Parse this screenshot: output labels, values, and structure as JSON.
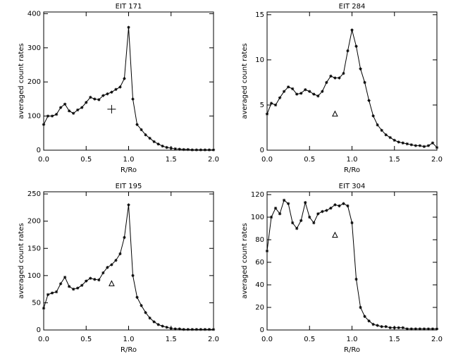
{
  "chart_data": [
    {
      "type": "line",
      "title": "EIT 171",
      "x_label": "R/Ro",
      "y_label": "averaged count rates",
      "color": "#000000",
      "x": [
        0,
        0.05,
        0.1,
        0.15,
        0.2,
        0.25,
        0.3,
        0.35,
        0.4,
        0.45,
        0.5,
        0.55,
        0.6,
        0.65,
        0.7,
        0.75,
        0.8,
        0.85,
        0.9,
        0.95,
        1.0,
        1.05,
        1.1,
        1.15,
        1.2,
        1.25,
        1.3,
        1.35,
        1.4,
        1.45,
        1.5,
        1.55,
        1.6,
        1.65,
        1.7,
        1.75,
        1.8,
        1.85,
        1.9,
        1.95,
        2.0
      ],
      "values": [
        75,
        100,
        100,
        105,
        125,
        135,
        115,
        108,
        118,
        125,
        140,
        155,
        150,
        148,
        160,
        165,
        170,
        178,
        185,
        210,
        360,
        150,
        75,
        60,
        45,
        35,
        25,
        18,
        12,
        8,
        6,
        4,
        3,
        2,
        2,
        1,
        1,
        1,
        1,
        1,
        1
      ],
      "annotation_point": {
        "x": 0.8,
        "y": 120,
        "symbol": "plus"
      },
      "xlim": [
        0,
        2
      ],
      "ylim": [
        0,
        405
      ],
      "xticks": [
        {
          "value": 0,
          "label": "0.0"
        },
        {
          "value": 0.5,
          "label": "0.5"
        },
        {
          "value": 1,
          "label": "1.0"
        },
        {
          "value": 1.5,
          "label": "1.5"
        },
        {
          "value": 2,
          "label": "2.0"
        }
      ],
      "yticks": [
        0,
        100,
        200,
        300,
        400
      ]
    },
    {
      "type": "line",
      "title": "EIT 284",
      "x_label": "R/Ro",
      "y_label": "averaged count rates",
      "color": "#000000",
      "x": [
        0,
        0.05,
        0.1,
        0.15,
        0.2,
        0.25,
        0.3,
        0.35,
        0.4,
        0.45,
        0.5,
        0.55,
        0.6,
        0.65,
        0.7,
        0.75,
        0.8,
        0.85,
        0.9,
        0.95,
        1.0,
        1.05,
        1.1,
        1.15,
        1.2,
        1.25,
        1.3,
        1.35,
        1.4,
        1.45,
        1.5,
        1.55,
        1.6,
        1.65,
        1.7,
        1.75,
        1.8,
        1.85,
        1.9,
        1.95,
        2.0
      ],
      "values": [
        4,
        5.2,
        5,
        5.8,
        6.5,
        7,
        6.8,
        6.2,
        6.3,
        6.7,
        6.5,
        6.2,
        6,
        6.5,
        7.5,
        8.2,
        8,
        8,
        8.5,
        11,
        13.3,
        11.5,
        9,
        7.5,
        5.5,
        3.8,
        2.8,
        2.2,
        1.7,
        1.4,
        1.1,
        0.9,
        0.8,
        0.7,
        0.6,
        0.5,
        0.5,
        0.4,
        0.5,
        0.8,
        0.3
      ],
      "annotation_point": {
        "x": 0.8,
        "y": 4,
        "symbol": "triangle"
      },
      "xlim": [
        0,
        2
      ],
      "ylim": [
        0,
        15.3
      ],
      "xticks": [
        {
          "value": 0,
          "label": "0.0"
        },
        {
          "value": 0.5,
          "label": "0.5"
        },
        {
          "value": 1,
          "label": "1.0"
        },
        {
          "value": 1.5,
          "label": "1.5"
        },
        {
          "value": 2,
          "label": "2.0"
        }
      ],
      "yticks": [
        0,
        5,
        10,
        15
      ]
    },
    {
      "type": "line",
      "title": "EIT 195",
      "x_label": "R/Ro",
      "y_label": "averaged count rates",
      "color": "#000000",
      "x": [
        0,
        0.05,
        0.1,
        0.15,
        0.2,
        0.25,
        0.3,
        0.35,
        0.4,
        0.45,
        0.5,
        0.55,
        0.6,
        0.65,
        0.7,
        0.75,
        0.8,
        0.85,
        0.9,
        0.95,
        1.0,
        1.05,
        1.1,
        1.15,
        1.2,
        1.25,
        1.3,
        1.35,
        1.4,
        1.45,
        1.5,
        1.55,
        1.6,
        1.65,
        1.7,
        1.75,
        1.8,
        1.85,
        1.9,
        1.95,
        2.0
      ],
      "values": [
        40,
        65,
        68,
        70,
        85,
        97,
        80,
        75,
        77,
        82,
        90,
        95,
        93,
        92,
        105,
        115,
        120,
        128,
        140,
        170,
        230,
        100,
        60,
        45,
        32,
        22,
        15,
        10,
        7,
        5,
        3,
        2,
        2,
        1,
        1,
        1,
        1,
        1,
        1,
        1,
        1
      ],
      "annotation_point": {
        "x": 0.8,
        "y": 85,
        "symbol": "triangle"
      },
      "xlim": [
        0,
        2
      ],
      "ylim": [
        0,
        254
      ],
      "xticks": [
        {
          "value": 0,
          "label": "0.0"
        },
        {
          "value": 0.5,
          "label": "0.5"
        },
        {
          "value": 1,
          "label": "1.0"
        },
        {
          "value": 1.5,
          "label": "1.5"
        },
        {
          "value": 2,
          "label": "2.0"
        }
      ],
      "yticks": [
        0,
        50,
        100,
        150,
        200,
        250
      ]
    },
    {
      "type": "line",
      "title": "EIT 304",
      "x_label": "R/Ro",
      "y_label": "averaged count rates",
      "color": "#000000",
      "x": [
        0,
        0.05,
        0.1,
        0.15,
        0.2,
        0.25,
        0.3,
        0.35,
        0.4,
        0.45,
        0.5,
        0.55,
        0.6,
        0.65,
        0.7,
        0.75,
        0.8,
        0.85,
        0.9,
        0.95,
        1.0,
        1.05,
        1.1,
        1.15,
        1.2,
        1.25,
        1.3,
        1.35,
        1.4,
        1.45,
        1.5,
        1.55,
        1.6,
        1.65,
        1.7,
        1.75,
        1.8,
        1.85,
        1.9,
        1.95,
        2.0
      ],
      "values": [
        70,
        100,
        108,
        103,
        115,
        112,
        95,
        90,
        97,
        113,
        100,
        95,
        103,
        105,
        106,
        108,
        111,
        110,
        112,
        110,
        95,
        45,
        20,
        12,
        8,
        5,
        4,
        3,
        3,
        2,
        2,
        2,
        2,
        1,
        1,
        1,
        1,
        1,
        1,
        1,
        1
      ],
      "annotation_point": {
        "x": 0.8,
        "y": 84,
        "symbol": "triangle"
      },
      "xlim": [
        0,
        2
      ],
      "ylim": [
        0,
        122.5
      ],
      "xticks": [
        {
          "value": 0,
          "label": "0.0"
        },
        {
          "value": 0.5,
          "label": "0.5"
        },
        {
          "value": 1,
          "label": "1.0"
        },
        {
          "value": 1.5,
          "label": "1.5"
        },
        {
          "value": 2,
          "label": "2.0"
        }
      ],
      "yticks": [
        0,
        20,
        40,
        60,
        80,
        100,
        120
      ]
    }
  ]
}
